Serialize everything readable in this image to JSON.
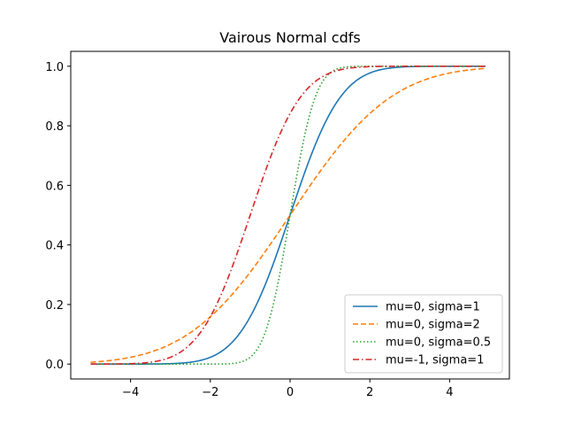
{
  "chart_data": {
    "type": "line",
    "title": "Vairous Normal cdfs",
    "xlabel": "",
    "ylabel": "",
    "xlim": [
      -5.5,
      5.5
    ],
    "ylim": [
      -0.05,
      1.05
    ],
    "xticks": [
      -4,
      -2,
      0,
      2,
      4
    ],
    "xtick_labels": [
      "−4",
      "−2",
      "0",
      "2",
      "4"
    ],
    "yticks": [
      0.0,
      0.2,
      0.4,
      0.6,
      0.8,
      1.0
    ],
    "ytick_labels": [
      "0.0",
      "0.2",
      "0.4",
      "0.6",
      "0.8",
      "1.0"
    ],
    "grid": false,
    "legend_position": "lower-right",
    "x_range": [
      -5,
      4.9
    ],
    "series": [
      {
        "name": "mu=0, sigma=1",
        "color": "#1f77b4",
        "style": "solid",
        "x": [
          -5,
          -4,
          -3,
          -2.5,
          -2,
          -1.5,
          -1,
          -0.5,
          0,
          0.5,
          1,
          1.5,
          2,
          2.5,
          3,
          4,
          4.9
        ],
        "y": [
          0.0,
          0.0,
          0.001,
          0.006,
          0.023,
          0.067,
          0.159,
          0.309,
          0.5,
          0.691,
          0.841,
          0.933,
          0.977,
          0.994,
          0.999,
          1.0,
          1.0
        ]
      },
      {
        "name": "mu=0, sigma=2",
        "color": "#ff7f0e",
        "style": "dashed",
        "x": [
          -5,
          -4,
          -3,
          -2,
          -1,
          0,
          1,
          2,
          3,
          4,
          4.9
        ],
        "y": [
          0.006,
          0.023,
          0.067,
          0.159,
          0.309,
          0.5,
          0.691,
          0.841,
          0.933,
          0.977,
          0.993
        ]
      },
      {
        "name": "mu=0, sigma=0.5",
        "color": "#2ca02c",
        "style": "dotted",
        "x": [
          -5,
          -2,
          -1.5,
          -1,
          -0.75,
          -0.5,
          -0.25,
          0,
          0.25,
          0.5,
          0.75,
          1,
          1.5,
          2,
          4.9
        ],
        "y": [
          0.0,
          0.0,
          0.001,
          0.023,
          0.067,
          0.159,
          0.309,
          0.5,
          0.691,
          0.841,
          0.933,
          0.977,
          0.999,
          1.0,
          1.0
        ]
      },
      {
        "name": "mu=-1, sigma=1",
        "color": "#d62728",
        "style": "dashdot",
        "x": [
          -5,
          -4,
          -3.5,
          -3,
          -2.5,
          -2,
          -1.5,
          -1,
          -0.5,
          0,
          0.5,
          1,
          1.5,
          2,
          3,
          4.9
        ],
        "y": [
          0.0,
          0.001,
          0.006,
          0.023,
          0.067,
          0.159,
          0.309,
          0.5,
          0.691,
          0.841,
          0.933,
          0.977,
          0.994,
          0.999,
          1.0,
          1.0
        ]
      }
    ]
  }
}
